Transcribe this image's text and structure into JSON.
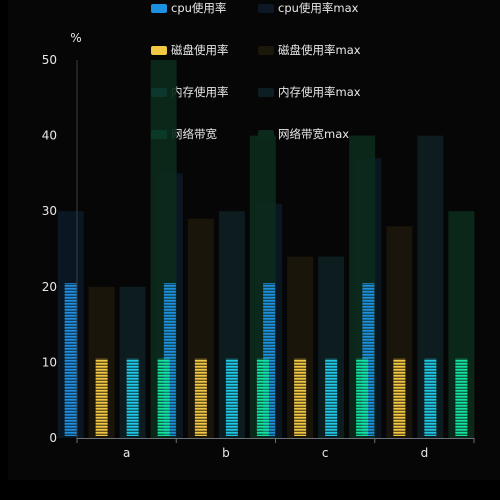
{
  "chart_data": {
    "type": "bar",
    "unit_label": "%",
    "categories": [
      "a",
      "b",
      "c",
      "d"
    ],
    "ylim": [
      0,
      50
    ],
    "yticks": [
      0,
      10,
      20,
      30,
      40,
      50
    ],
    "series": [
      {
        "name": "cpu使用率",
        "color": "#1e90e0",
        "pattern": "stripes",
        "values": [
          20.5,
          20.5,
          20.5,
          20.5
        ]
      },
      {
        "name": "磁盘使用率",
        "color": "#f2c744",
        "pattern": "stripes",
        "values": [
          10.5,
          10.5,
          10.5,
          10.5
        ]
      },
      {
        "name": "内存使用率",
        "color": "#1ec8e6",
        "pattern": "stripes",
        "values": [
          10.5,
          10.5,
          10.5,
          10.5
        ]
      },
      {
        "name": "网络带宽",
        "color": "#12e3a0",
        "pattern": "stripes",
        "values": [
          10.5,
          10.5,
          10.5,
          10.5
        ]
      }
    ],
    "max_series": [
      {
        "name": "cpu使用率max",
        "color": "#0c1826",
        "values": [
          30,
          35,
          31,
          37
        ]
      },
      {
        "name": "磁盘使用率max",
        "color": "#1c170b",
        "values": [
          20,
          29,
          24,
          28
        ]
      },
      {
        "name": "内存使用率max",
        "color": "#0d1e22",
        "values": [
          20,
          30,
          24,
          40
        ]
      },
      {
        "name": "网络带宽max",
        "color": "#0b2a1c",
        "values": [
          50,
          40,
          40,
          30
        ]
      }
    ],
    "legend_position": "top-center",
    "grid": false
  }
}
